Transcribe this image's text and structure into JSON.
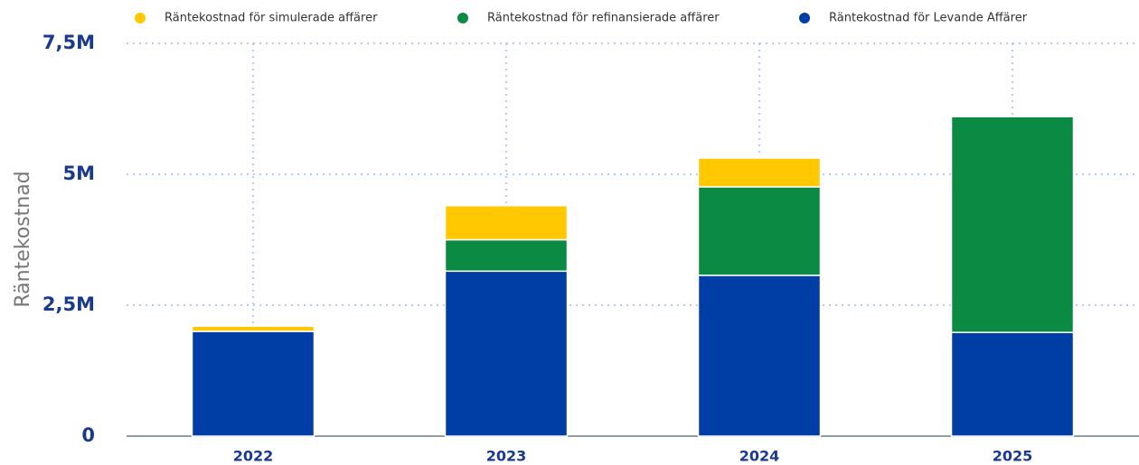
{
  "chart_data": {
    "type": "stacked_bar",
    "y_label": "Räntekostnad",
    "categories": [
      "2022",
      "2023",
      "2024",
      "2025"
    ],
    "series": [
      {
        "name": "Räntekostnad för simulerade affärer",
        "color": "#ffc800",
        "values": [
          100000,
          650000,
          550000,
          0
        ]
      },
      {
        "name": "Räntekostnad för refinansierade affärer",
        "color": "#0b8a43",
        "values": [
          0,
          600000,
          1690000,
          4120000
        ]
      },
      {
        "name": "Räntekostnad för Levande Affärer",
        "color": "#003da5",
        "values": [
          2000000,
          3150000,
          3070000,
          1980000
        ]
      }
    ],
    "ylim": [
      0,
      7500000
    ],
    "yticks": [
      {
        "value": 0,
        "label": "0"
      },
      {
        "value": 2500000,
        "label": "2,5M"
      },
      {
        "value": 5000000,
        "label": "5M"
      },
      {
        "value": 7500000,
        "label": "7,5M"
      }
    ],
    "grid": true
  }
}
